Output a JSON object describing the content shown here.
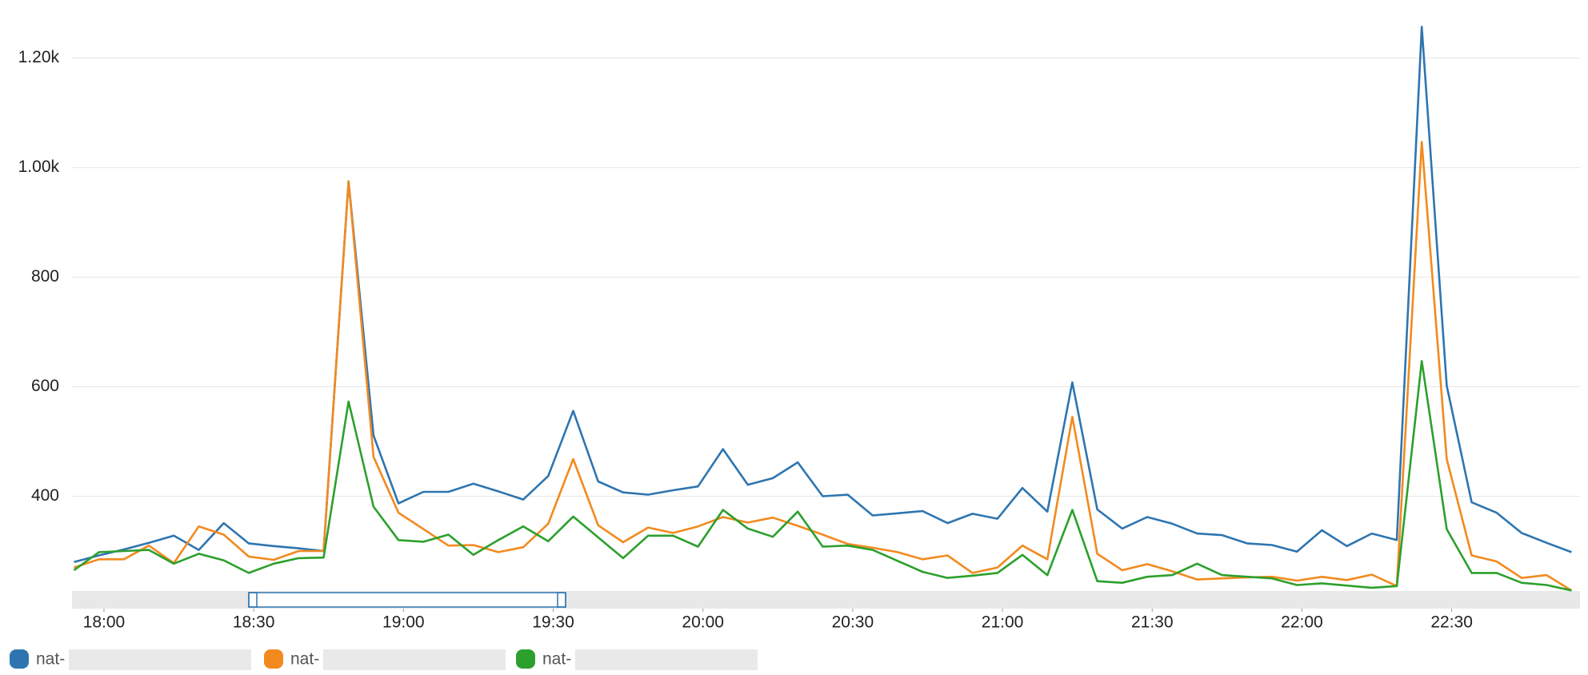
{
  "chart_data": {
    "type": "line",
    "x": [
      1074,
      1079,
      1084,
      1089,
      1094,
      1099,
      1104,
      1109,
      1114,
      1119,
      1124,
      1129,
      1134,
      1139,
      1144,
      1149,
      1154,
      1159,
      1164,
      1169,
      1174,
      1179,
      1184,
      1189,
      1194,
      1199,
      1204,
      1209,
      1214,
      1219,
      1224,
      1229,
      1234,
      1239,
      1244,
      1249,
      1254,
      1259,
      1264,
      1269,
      1274,
      1279,
      1284,
      1289,
      1294,
      1299,
      1304,
      1309,
      1314,
      1319,
      1324,
      1329,
      1334,
      1339,
      1344,
      1349,
      1354,
      1359,
      1364,
      1369,
      1374
    ],
    "series": [
      {
        "name": "nat-",
        "color": "#2e75b0",
        "values": [
          280,
          292,
          303,
          315,
          328,
          302,
          351,
          314,
          309,
          305,
          300,
          975,
          511,
          387,
          408,
          408,
          423,
          409,
          394,
          437,
          556,
          427,
          407,
          403,
          411,
          418,
          486,
          421,
          433,
          462,
          400,
          403,
          365,
          369,
          373,
          351,
          368,
          359,
          415,
          372,
          608,
          376,
          341,
          362,
          350,
          332,
          329,
          314,
          311,
          299,
          338,
          309,
          332,
          320,
          1257,
          602,
          389,
          370,
          333,
          315,
          298
        ]
      },
      {
        "name": "nat-",
        "color": "#f28a1f",
        "values": [
          270,
          285,
          285,
          310,
          278,
          345,
          330,
          290,
          284,
          300,
          300,
          975,
          472,
          370,
          340,
          310,
          311,
          298,
          307,
          350,
          468,
          347,
          316,
          343,
          333,
          345,
          362,
          352,
          361,
          346,
          330,
          313,
          306,
          298,
          285,
          292,
          260,
          270,
          310,
          285,
          545,
          295,
          265,
          276,
          263,
          248,
          250,
          252,
          253,
          246,
          253,
          247,
          257,
          236,
          1047,
          468,
          292,
          281,
          251,
          256,
          228
        ]
      },
      {
        "name": "nat-",
        "color": "#2ca02c",
        "values": [
          265,
          298,
          300,
          302,
          277,
          295,
          283,
          260,
          277,
          287,
          288,
          573,
          381,
          320,
          317,
          330,
          293,
          320,
          345,
          318,
          363,
          325,
          287,
          328,
          328,
          308,
          375,
          341,
          326,
          372,
          308,
          310,
          302,
          282,
          262,
          251,
          255,
          260,
          293,
          256,
          375,
          245,
          242,
          253,
          256,
          277,
          256,
          253,
          250,
          238,
          241,
          237,
          233,
          236,
          647,
          340,
          260,
          260,
          242,
          238,
          228
        ]
      }
    ],
    "xlim": [
      1073.6,
      1375.7
    ],
    "xticks": [
      {
        "value": 1080,
        "label": "18:00"
      },
      {
        "value": 1110,
        "label": "18:30"
      },
      {
        "value": 1140,
        "label": "19:00"
      },
      {
        "value": 1170,
        "label": "19:30"
      },
      {
        "value": 1200,
        "label": "20:00"
      },
      {
        "value": 1230,
        "label": "20:30"
      },
      {
        "value": 1260,
        "label": "21:00"
      },
      {
        "value": 1290,
        "label": "21:30"
      },
      {
        "value": 1320,
        "label": "22:00"
      },
      {
        "value": 1350,
        "label": "22:30"
      }
    ],
    "ylim": [
      227,
      1290
    ],
    "yticks": [
      400,
      600,
      800,
      {
        "value": 1000,
        "label": "1.00k"
      },
      {
        "value": 1200,
        "label": "1.20k"
      }
    ],
    "grid": true
  }
}
